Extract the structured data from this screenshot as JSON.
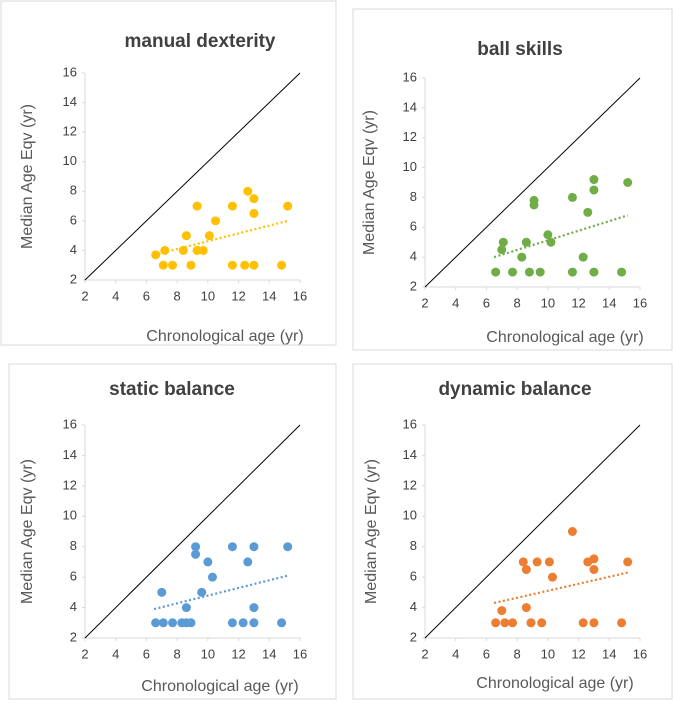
{
  "chart_data": [
    {
      "type": "scatter",
      "title": "manual dexterity",
      "x_label": "Chronological age (yr)",
      "y_label": "Median Age Eqv (yr)",
      "color": "#ffc000",
      "x": [
        6.6,
        7.1,
        7.2,
        7.7,
        8.4,
        8.6,
        8.9,
        9.3,
        9.3,
        9.7,
        10.1,
        10.5,
        11.6,
        11.6,
        12.4,
        12.6,
        13,
        13,
        13,
        14.8,
        15.2
      ],
      "values": [
        3.7,
        3,
        4,
        3,
        4,
        5,
        3,
        7,
        4,
        4,
        5,
        6,
        7,
        3,
        3,
        8,
        7.5,
        6.5,
        3,
        3,
        7
      ],
      "trend": {
        "x": [
          6.5,
          15.2
        ],
        "values": [
          3.7,
          6.0
        ]
      },
      "xlim": [
        2,
        16
      ],
      "ylim": [
        2,
        16
      ],
      "xticks": [
        2,
        4,
        6,
        8,
        10,
        12,
        14,
        16
      ],
      "yticks": [
        2,
        4,
        6,
        8,
        10,
        12,
        14,
        16
      ]
    },
    {
      "type": "scatter",
      "title": "ball skills",
      "x_label": "Chronological age (yr)",
      "y_label": "Median Age Eqv (yr)",
      "color": "#70ad47",
      "x": [
        6.6,
        7,
        7.1,
        7.7,
        8.3,
        8.6,
        8.8,
        9.1,
        9.1,
        9.5,
        10,
        10.2,
        11.6,
        11.6,
        12.3,
        12.6,
        13,
        13,
        13,
        14.8,
        15.2
      ],
      "values": [
        3,
        4.5,
        5,
        3,
        4,
        5,
        3,
        7.8,
        7.5,
        3,
        5.5,
        5,
        8,
        3,
        4,
        7,
        9.2,
        8.5,
        3,
        3,
        9
      ],
      "trend": {
        "x": [
          6.5,
          15.2
        ],
        "values": [
          4.0,
          6.8
        ]
      },
      "xlim": [
        2,
        16
      ],
      "ylim": [
        2,
        16
      ],
      "xticks": [
        2,
        4,
        6,
        8,
        10,
        12,
        14,
        16
      ],
      "yticks": [
        2,
        4,
        6,
        8,
        10,
        12,
        14,
        16
      ]
    },
    {
      "type": "scatter",
      "title": "static balance",
      "x_label": "Chronological age (yr)",
      "y_label": "Median Age Eqv (yr)",
      "color": "#5b9bd5",
      "x": [
        6.6,
        7,
        7.1,
        7.7,
        8.3,
        8.6,
        8.6,
        8.9,
        9.2,
        9.2,
        9.6,
        10,
        10.3,
        11.6,
        11.6,
        12.3,
        12.6,
        13,
        13,
        13,
        14.8,
        15.2
      ],
      "values": [
        3,
        5,
        3,
        3,
        3,
        4,
        3,
        3,
        8,
        7.5,
        5,
        7,
        6,
        8,
        3,
        3,
        7,
        8,
        4,
        3,
        3,
        8
      ],
      "trend": {
        "x": [
          6.5,
          15.2
        ],
        "values": [
          3.9,
          6.1
        ]
      },
      "xlim": [
        2,
        16
      ],
      "ylim": [
        2,
        16
      ],
      "xticks": [
        2,
        4,
        6,
        8,
        10,
        12,
        14,
        16
      ],
      "yticks": [
        2,
        4,
        6,
        8,
        10,
        12,
        14,
        16
      ]
    },
    {
      "type": "scatter",
      "title": "dynamic balance",
      "x_label": "Chronological age (yr)",
      "y_label": "Median Age Eqv (yr)",
      "color": "#ed7d31",
      "x": [
        6.6,
        7,
        7.2,
        7.7,
        8.4,
        8.6,
        8.6,
        8.9,
        9.3,
        9.6,
        10.1,
        10.3,
        11.6,
        12.3,
        12.6,
        13,
        13,
        13,
        14.8,
        15.2
      ],
      "values": [
        3,
        3.8,
        3,
        3,
        7,
        6.5,
        4,
        3,
        7,
        3,
        7,
        6,
        9,
        3,
        7,
        7.2,
        6.5,
        3,
        3,
        7
      ],
      "trend": {
        "x": [
          6.5,
          15.2
        ],
        "values": [
          4.3,
          6.3
        ]
      },
      "xlim": [
        2,
        16
      ],
      "ylim": [
        2,
        16
      ],
      "xticks": [
        2,
        4,
        6,
        8,
        10,
        12,
        14,
        16
      ],
      "yticks": [
        2,
        4,
        6,
        8,
        10,
        12,
        14,
        16
      ]
    }
  ]
}
